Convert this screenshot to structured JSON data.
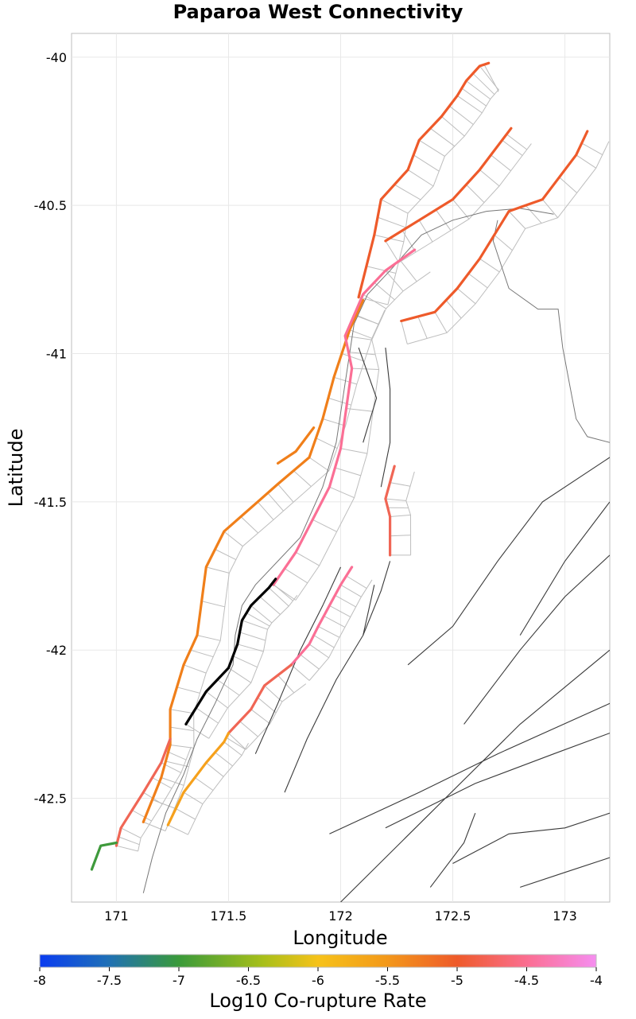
{
  "title": "Paparoa West Connectivity",
  "axes": {
    "xlabel": "Longitude",
    "ylabel": "Latitude",
    "xticks": [
      "171",
      "171.5",
      "172",
      "172.5",
      "173"
    ],
    "yticks": [
      "-40",
      "-40.5",
      "-41",
      "-41.5",
      "-42",
      "-42.5"
    ]
  },
  "colorbar": {
    "label": "Log10 Co-rupture Rate",
    "ticks": [
      "-8",
      "-7.5",
      "-7",
      "-6.5",
      "-6",
      "-5.5",
      "-5",
      "-4.5",
      "-4"
    ],
    "range": [
      -8,
      -4
    ]
  },
  "colors": {
    "selected_section": "#000000",
    "dark_orange": "#ee5a2a",
    "orange": "#f07f1a",
    "light_orange": "#f6a11c",
    "pink": "#fb6f95",
    "red_orange": "#f06655",
    "green": "#3f9a3c",
    "background_fault": "#3a3a3a",
    "element_outline": "#bdbdbd"
  },
  "chart_data": {
    "type": "map",
    "title": "Paparoa West Connectivity",
    "xlabel": "Longitude",
    "ylabel": "Latitude",
    "xlim": [
      170.8,
      173.2
    ],
    "ylim": [
      -42.85,
      -39.92
    ],
    "selected_fault": {
      "name": "Paparoa West",
      "color": "#000000",
      "points": [
        [
          171.31,
          -42.25
        ],
        [
          171.4,
          -42.14
        ],
        [
          171.5,
          -42.06
        ],
        [
          171.54,
          -41.98
        ],
        [
          171.56,
          -41.9
        ],
        [
          171.6,
          -41.85
        ],
        [
          171.68,
          -41.79
        ],
        [
          171.71,
          -41.76
        ]
      ]
    },
    "connected_faults": [
      {
        "id": "coastal-main",
        "color_value": -5.0,
        "color": "#f07f1a",
        "points": [
          [
            171.12,
            -42.58
          ],
          [
            171.2,
            -42.43
          ],
          [
            171.24,
            -42.32
          ],
          [
            171.24,
            -42.2
          ],
          [
            171.3,
            -42.05
          ],
          [
            171.36,
            -41.95
          ],
          [
            171.4,
            -41.72
          ],
          [
            171.48,
            -41.6
          ],
          [
            171.63,
            -41.5
          ],
          [
            171.72,
            -41.44
          ],
          [
            171.86,
            -41.35
          ],
          [
            171.92,
            -41.22
          ],
          [
            171.97,
            -41.08
          ],
          [
            172.04,
            -40.92
          ],
          [
            172.1,
            -40.82
          ]
        ]
      },
      {
        "id": "coastal-south",
        "color_value": -4.6,
        "color": "#f06655",
        "points": [
          [
            171.0,
            -42.66
          ],
          [
            171.02,
            -42.6
          ],
          [
            171.12,
            -42.48
          ],
          [
            171.2,
            -42.38
          ],
          [
            171.24,
            -42.3
          ]
        ]
      },
      {
        "id": "coastal-tip",
        "color_value": -6.8,
        "color": "#3f9a3c",
        "points": [
          [
            170.89,
            -42.74
          ],
          [
            170.93,
            -42.66
          ],
          [
            171.0,
            -42.65
          ]
        ]
      },
      {
        "id": "north-ridge",
        "color_value": -4.8,
        "color": "#ee5a2a",
        "points": [
          [
            172.08,
            -40.81
          ],
          [
            172.15,
            -40.6
          ],
          [
            172.18,
            -40.48
          ],
          [
            172.3,
            -40.38
          ],
          [
            172.35,
            -40.28
          ],
          [
            172.45,
            -40.2
          ],
          [
            172.52,
            -40.13
          ],
          [
            172.56,
            -40.08
          ],
          [
            172.62,
            -40.03
          ],
          [
            172.66,
            -40.02
          ]
        ]
      },
      {
        "id": "north-east-1",
        "color_value": -4.8,
        "color": "#ee5a2a",
        "points": [
          [
            172.2,
            -40.62
          ],
          [
            172.35,
            -40.55
          ],
          [
            172.5,
            -40.48
          ],
          [
            172.62,
            -40.38
          ],
          [
            172.72,
            -40.28
          ],
          [
            172.76,
            -40.24
          ]
        ]
      },
      {
        "id": "north-east-2",
        "color_value": -4.8,
        "color": "#ee5a2a",
        "points": [
          [
            172.27,
            -40.89
          ],
          [
            172.42,
            -40.86
          ],
          [
            172.52,
            -40.78
          ],
          [
            172.62,
            -40.68
          ],
          [
            172.75,
            -40.52
          ],
          [
            172.9,
            -40.48
          ],
          [
            173.05,
            -40.33
          ],
          [
            173.1,
            -40.25
          ]
        ]
      },
      {
        "id": "mid-pink",
        "color_value": -4.2,
        "color": "#fb6f95",
        "points": [
          [
            171.7,
            -41.78
          ],
          [
            171.8,
            -41.67
          ],
          [
            171.95,
            -41.45
          ],
          [
            172.0,
            -41.32
          ],
          [
            172.05,
            -41.05
          ],
          [
            172.02,
            -40.94
          ],
          [
            172.1,
            -40.8
          ],
          [
            172.2,
            -40.72
          ],
          [
            172.33,
            -40.65
          ]
        ]
      },
      {
        "id": "inland-pink",
        "color_value": -4.2,
        "color": "#fb6f95",
        "points": [
          [
            171.78,
            -42.05
          ],
          [
            171.86,
            -41.98
          ],
          [
            171.9,
            -41.92
          ],
          [
            171.95,
            -41.85
          ],
          [
            172.0,
            -41.78
          ],
          [
            172.05,
            -41.72
          ]
        ]
      },
      {
        "id": "inland-red",
        "color_value": -4.6,
        "color": "#f06655",
        "points": [
          [
            171.5,
            -42.28
          ],
          [
            171.6,
            -42.2
          ],
          [
            171.66,
            -42.12
          ],
          [
            171.78,
            -42.05
          ]
        ]
      },
      {
        "id": "inland-light",
        "color_value": -5.6,
        "color": "#f6a11c",
        "points": [
          [
            171.23,
            -42.59
          ],
          [
            171.3,
            -42.48
          ],
          [
            171.4,
            -42.38
          ],
          [
            171.48,
            -42.31
          ],
          [
            171.5,
            -42.28
          ]
        ]
      },
      {
        "id": "east-red",
        "color_value": -4.7,
        "color": "#f06655",
        "points": [
          [
            172.22,
            -41.68
          ],
          [
            172.22,
            -41.55
          ],
          [
            172.2,
            -41.49
          ],
          [
            172.24,
            -41.38
          ]
        ]
      },
      {
        "id": "short-orange",
        "color_value": -5.0,
        "color": "#f07f1a",
        "points": [
          [
            171.72,
            -41.37
          ],
          [
            171.8,
            -41.33
          ],
          [
            171.88,
            -41.25
          ]
        ]
      }
    ]
  }
}
